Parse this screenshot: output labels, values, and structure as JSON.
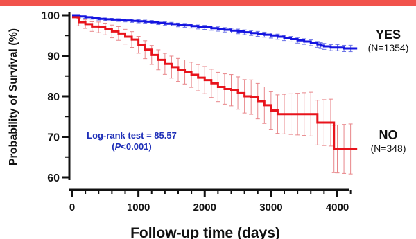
{
  "chart_data": {
    "type": "line",
    "title": "",
    "xlabel": "Follow-up time (days)",
    "ylabel": "Probability of Survival (%)",
    "xlim": [
      0,
      4400
    ],
    "ylim": [
      60,
      100
    ],
    "x_ticks": [
      0,
      1000,
      2000,
      3000,
      4000
    ],
    "x_tick_labels": [
      "0",
      "1000",
      "2000",
      "3000",
      "4000"
    ],
    "y_ticks": [
      60,
      70,
      80,
      90,
      100
    ],
    "y_tick_labels": [
      "60",
      "70",
      "80",
      "90",
      "100"
    ],
    "grid": false,
    "annotation": {
      "line1": "Log-rank test = 85.57",
      "line2_italic": "P",
      "line2_rest": "<0.001)",
      "line2_open": "(",
      "color": "#1e2fb8"
    },
    "series": [
      {
        "name": "YES",
        "n_label": "(N=1354)",
        "color": "#1414e0",
        "x": [
          0,
          100,
          200,
          300,
          400,
          500,
          600,
          700,
          800,
          900,
          1000,
          1100,
          1200,
          1300,
          1400,
          1500,
          1600,
          1700,
          1800,
          1900,
          2000,
          2100,
          2200,
          2300,
          2400,
          2500,
          2600,
          2700,
          2800,
          2900,
          3000,
          3100,
          3200,
          3300,
          3400,
          3500,
          3600,
          3700,
          3750,
          3800,
          3900,
          4000,
          4100,
          4200,
          4300
        ],
        "y": [
          100,
          99.7,
          99.5,
          99.3,
          99.1,
          99.0,
          98.9,
          98.8,
          98.7,
          98.6,
          98.5,
          98.4,
          98.3,
          98.1,
          97.9,
          97.8,
          97.6,
          97.5,
          97.3,
          97.1,
          97.0,
          96.8,
          96.6,
          96.4,
          96.2,
          96.0,
          95.8,
          95.6,
          95.4,
          95.2,
          95.0,
          94.7,
          94.4,
          94.1,
          93.8,
          93.5,
          93.2,
          92.8,
          92.5,
          92.3,
          92.0,
          92.0,
          91.8,
          91.8,
          91.8
        ]
      },
      {
        "name": "NO",
        "n_label": "(N=348)",
        "color": "#e8141c",
        "x": [
          0,
          100,
          200,
          300,
          400,
          500,
          600,
          700,
          800,
          900,
          1000,
          1100,
          1200,
          1300,
          1400,
          1500,
          1600,
          1700,
          1800,
          1900,
          2000,
          2100,
          2200,
          2300,
          2400,
          2500,
          2600,
          2700,
          2800,
          2900,
          3000,
          3100,
          3200,
          3300,
          3400,
          3500,
          3600,
          3700,
          3800,
          3900,
          3950,
          4000,
          4100,
          4200,
          4300
        ],
        "y": [
          99.5,
          98.3,
          97.8,
          97.2,
          97.0,
          96.6,
          96.0,
          95.5,
          94.7,
          94.0,
          92.7,
          91.5,
          90.2,
          89.0,
          88.0,
          87.2,
          86.5,
          86.0,
          85.3,
          84.6,
          84.0,
          83.2,
          82.3,
          81.8,
          81.5,
          80.8,
          80.0,
          79.8,
          78.8,
          77.8,
          76.5,
          75.6,
          75.6,
          75.6,
          75.6,
          75.6,
          75.6,
          73.5,
          73.5,
          73.5,
          67.0,
          67.0,
          67.0,
          67.0,
          67.0
        ]
      }
    ]
  }
}
